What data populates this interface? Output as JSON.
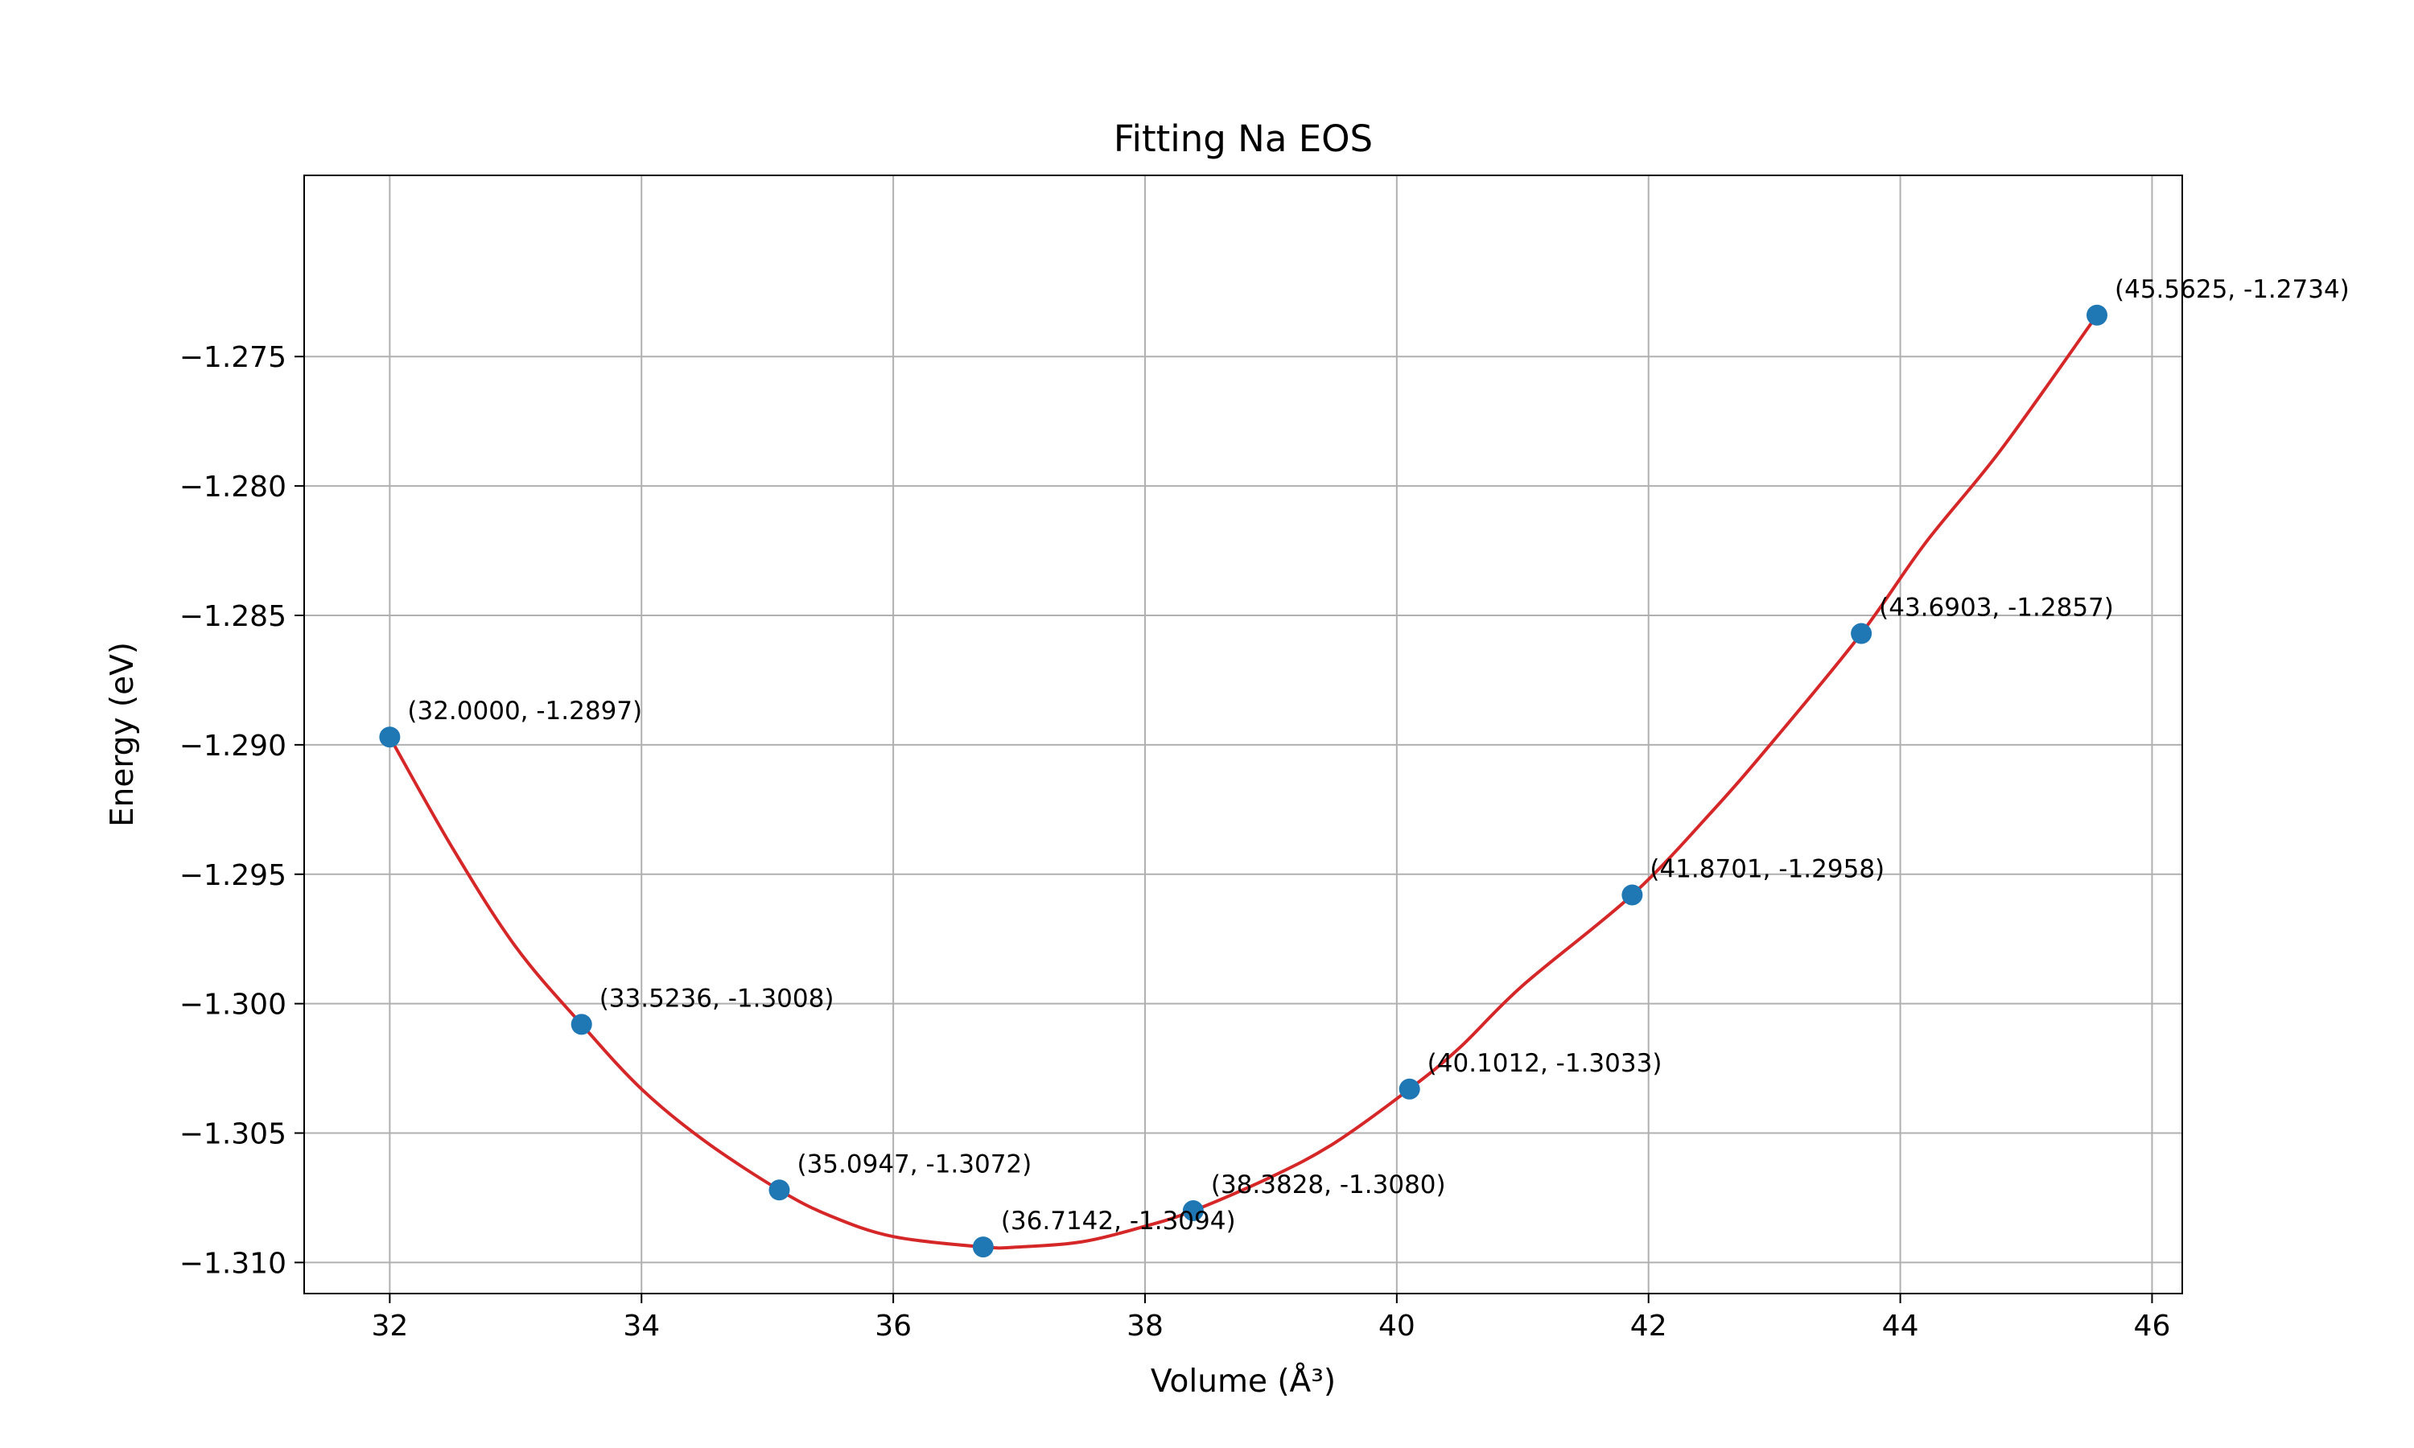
{
  "chart_data": {
    "type": "line",
    "title": "Fitting Na EOS",
    "xlabel": "Volume (Å³)",
    "ylabel": "Energy (eV)",
    "xlim": [
      31.32,
      46.24
    ],
    "ylim": [
      -1.3112,
      -1.268
    ],
    "xticks": [
      32,
      34,
      36,
      38,
      40,
      42,
      44,
      46
    ],
    "yticks": [
      -1.31,
      -1.305,
      -1.3,
      -1.295,
      -1.29,
      -1.285,
      -1.28,
      -1.275
    ],
    "xtick_labels": [
      "32",
      "34",
      "36",
      "38",
      "40",
      "42",
      "44",
      "46"
    ],
    "ytick_labels": [
      "−1.310",
      "−1.305",
      "−1.300",
      "−1.295",
      "−1.290",
      "−1.285",
      "−1.280",
      "−1.275"
    ],
    "grid": true,
    "series": [
      {
        "kind": "scatter",
        "color": "#1f77b4",
        "x": [
          32.0,
          33.5236,
          35.0947,
          36.7142,
          38.3828,
          40.1012,
          41.8701,
          43.6903,
          45.5625
        ],
        "y": [
          -1.2897,
          -1.3008,
          -1.3072,
          -1.3094,
          -1.308,
          -1.3033,
          -1.2958,
          -1.2857,
          -1.2734
        ],
        "labels": [
          "(32.0000, -1.2897)",
          "(33.5236, -1.3008)",
          "(35.0947, -1.3072)",
          "(36.7142, -1.3094)",
          "(38.3828, -1.3080)",
          "(40.1012, -1.3033)",
          "(41.8701, -1.2958)",
          "(43.6903, -1.2857)",
          "(45.5625, -1.2734)"
        ]
      },
      {
        "kind": "fit-line",
        "color": "#d62728",
        "x": [
          32.0,
          32.5,
          33.0,
          33.5236,
          34.0,
          34.5,
          35.0947,
          35.5,
          36.0,
          36.7142,
          37.0,
          37.5,
          38.0,
          38.3828,
          39.0,
          39.5,
          40.1012,
          40.5,
          41.0,
          41.8701,
          42.5,
          43.0,
          43.6903,
          44.2,
          44.8,
          45.5625
        ],
        "y": [
          -1.2897,
          -1.294,
          -1.2978,
          -1.3008,
          -1.3033,
          -1.3053,
          -1.3072,
          -1.3082,
          -1.309,
          -1.3094,
          -1.3094,
          -1.3092,
          -1.3086,
          -1.308,
          -1.3067,
          -1.3054,
          -1.3033,
          -1.3017,
          -1.2993,
          -1.2958,
          -1.2926,
          -1.2898,
          -1.2857,
          -1.2822,
          -1.2786,
          -1.2734
        ]
      }
    ]
  }
}
